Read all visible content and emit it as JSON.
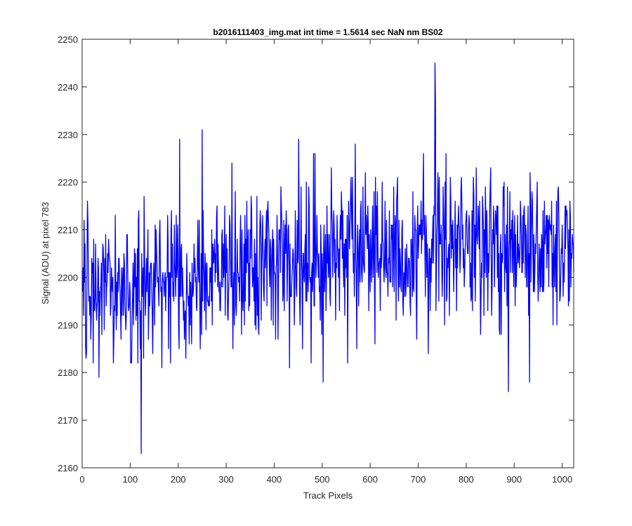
{
  "chart_data": {
    "type": "line",
    "title": "b2016111403_img.mat int time = 1.5614 sec  NaN nm BS02",
    "xlabel": "Track Pixels",
    "ylabel": "Signal (ADU) at pixel 783",
    "xlim": [
      0,
      1024
    ],
    "ylim": [
      2160,
      2250
    ],
    "xticks": [
      0,
      100,
      200,
      300,
      400,
      500,
      600,
      700,
      800,
      900,
      1000
    ],
    "yticks": [
      2160,
      2170,
      2180,
      2190,
      2200,
      2210,
      2220,
      2230,
      2240,
      2250
    ],
    "grid": false,
    "line_color": "#0000ff",
    "x_start": 1,
    "x_step": 1,
    "baseline_left": 2196,
    "baseline_right": 2206,
    "noise_sd": 7.5,
    "peaks": [
      {
        "x": 123,
        "y": 2163
      },
      {
        "x": 121,
        "y": 2185
      },
      {
        "x": 735,
        "y": 2245
      },
      {
        "x": 736,
        "y": 2237
      },
      {
        "x": 250,
        "y": 2231
      },
      {
        "x": 203,
        "y": 2229
      },
      {
        "x": 451,
        "y": 2229
      },
      {
        "x": 569,
        "y": 2228
      },
      {
        "x": 1016,
        "y": 2216
      },
      {
        "x": 888,
        "y": 2176
      },
      {
        "x": 932,
        "y": 2178
      },
      {
        "x": 502,
        "y": 2178
      },
      {
        "x": 35,
        "y": 2179
      },
      {
        "x": 432,
        "y": 2181
      },
      {
        "x": 166,
        "y": 2181
      },
      {
        "x": 216,
        "y": 2183
      },
      {
        "x": 101,
        "y": 2182
      }
    ]
  }
}
